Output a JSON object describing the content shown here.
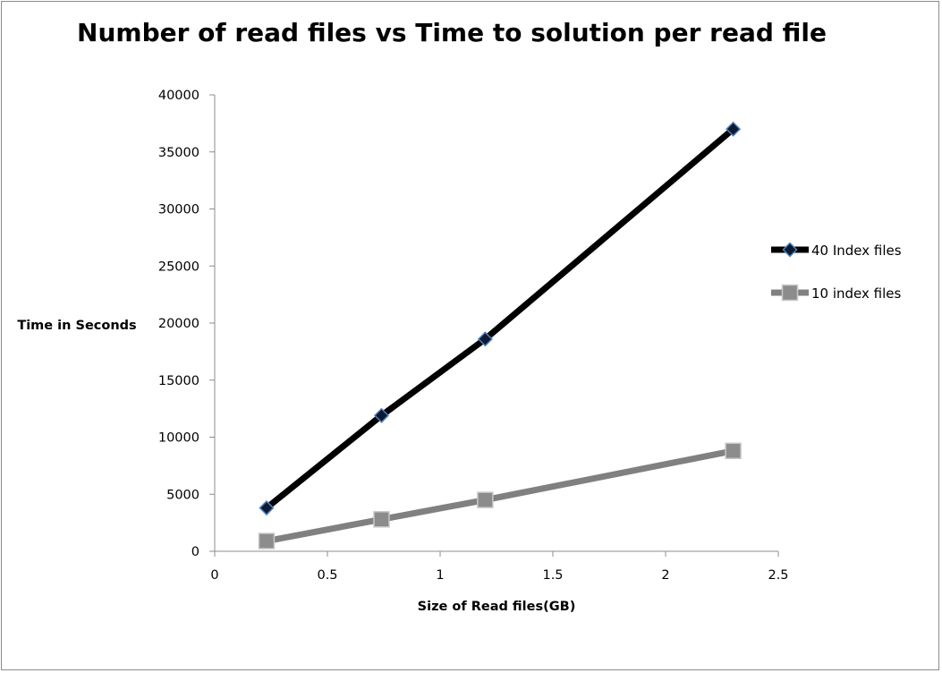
{
  "chart_data": {
    "type": "line",
    "title": "Number of read files vs Time to solution per read file",
    "xlabel": "Size of Read files(GB)",
    "ylabel": "Time  in Seconds",
    "xlim": [
      0,
      2.5
    ],
    "ylim": [
      0,
      40000
    ],
    "x_ticks": [
      0,
      0.5,
      1,
      1.5,
      2,
      2.5
    ],
    "x_tick_labels": [
      "0",
      "0.5",
      "1",
      "1.5",
      "2",
      "2.5"
    ],
    "y_ticks": [
      0,
      5000,
      10000,
      15000,
      20000,
      25000,
      30000,
      35000,
      40000
    ],
    "y_tick_labels": [
      "0",
      "5000",
      "10000",
      "15000",
      "20000",
      "25000",
      "30000",
      "35000",
      "40000"
    ],
    "grid": false,
    "legend_position": "right",
    "series": [
      {
        "name": "40 Index files",
        "color": "#000000",
        "marker": "diamond",
        "marker_fill": "#0d1a33",
        "marker_stroke": "#4f81bd",
        "x": [
          0.23,
          0.74,
          1.2,
          2.3
        ],
        "y": [
          3800,
          11900,
          18600,
          37000
        ]
      },
      {
        "name": "10 index files",
        "color": "#808080",
        "marker": "square",
        "marker_fill": "#8c8c8c",
        "marker_stroke": "#c8c8c8",
        "x": [
          0.23,
          0.74,
          1.2,
          2.3
        ],
        "y": [
          900,
          2800,
          4500,
          8800
        ]
      }
    ]
  }
}
